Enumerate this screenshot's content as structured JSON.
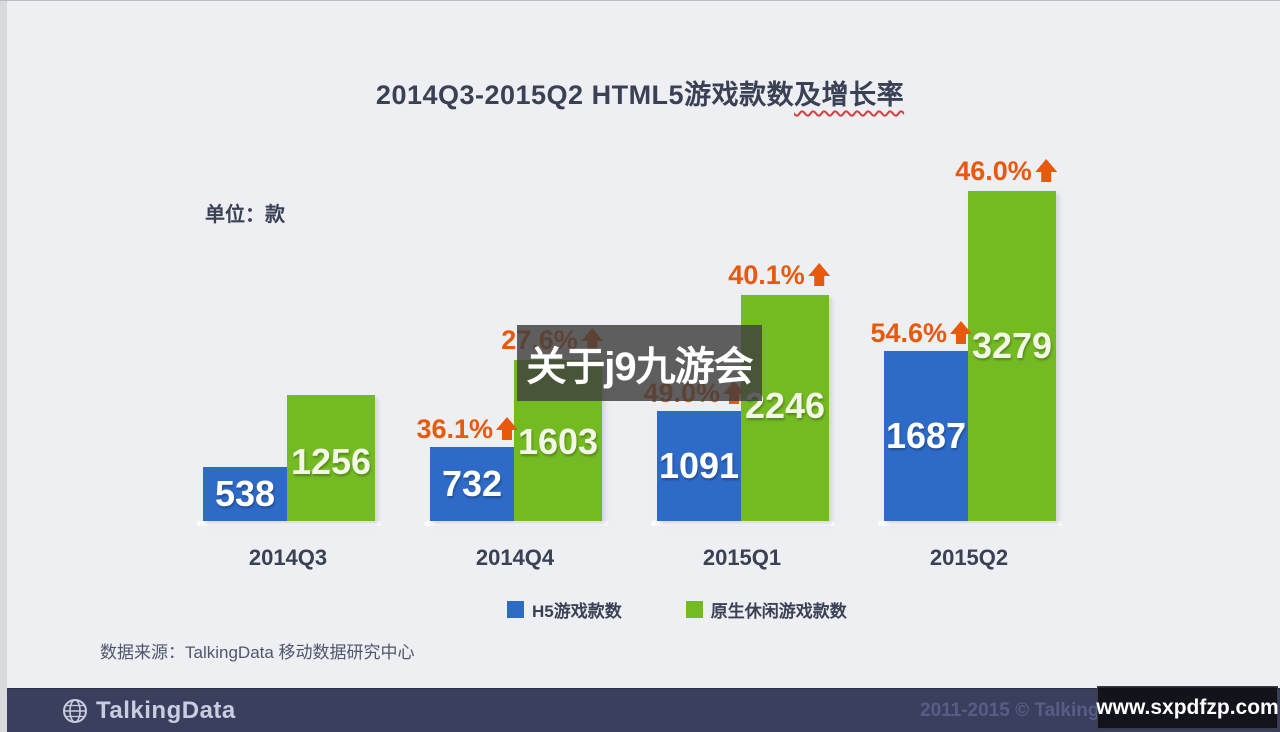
{
  "title": {
    "main": "2014Q3-2015Q2 HTML5游戏款数",
    "underlined": "及增长率"
  },
  "unit_label": "单位：款",
  "watermark_overlay": "关于j9九游会",
  "chart_data": {
    "type": "bar",
    "title": "2014Q3-2015Q2 HTML5游戏款数及增长率",
    "ylabel": "单位：款",
    "categories": [
      "2014Q3",
      "2014Q4",
      "2015Q1",
      "2015Q2"
    ],
    "series": [
      {
        "name": "H5游戏款数",
        "color": "#2e6bc8",
        "values": [
          538,
          732,
          1091,
          1687
        ],
        "growth": [
          null,
          "36.1%",
          "49.0%",
          "54.6%"
        ]
      },
      {
        "name": "原生休闲游戏款数",
        "color": "#74ba23",
        "values": [
          1256,
          1603,
          2246,
          3279
        ],
        "growth": [
          null,
          "27.6%",
          "40.1%",
          "46.0%"
        ]
      }
    ],
    "growth_color": "#e8590c",
    "legend_position": "bottom",
    "grid": false,
    "value_labels": "inside-bars"
  },
  "source_note": "数据来源：TalkingData 移动数据研究中心",
  "footer": {
    "brand": "TalkingData",
    "copyright": "2011-2015 © TalkingData.com",
    "site_watermark": "www.sxpdfzp.com"
  }
}
